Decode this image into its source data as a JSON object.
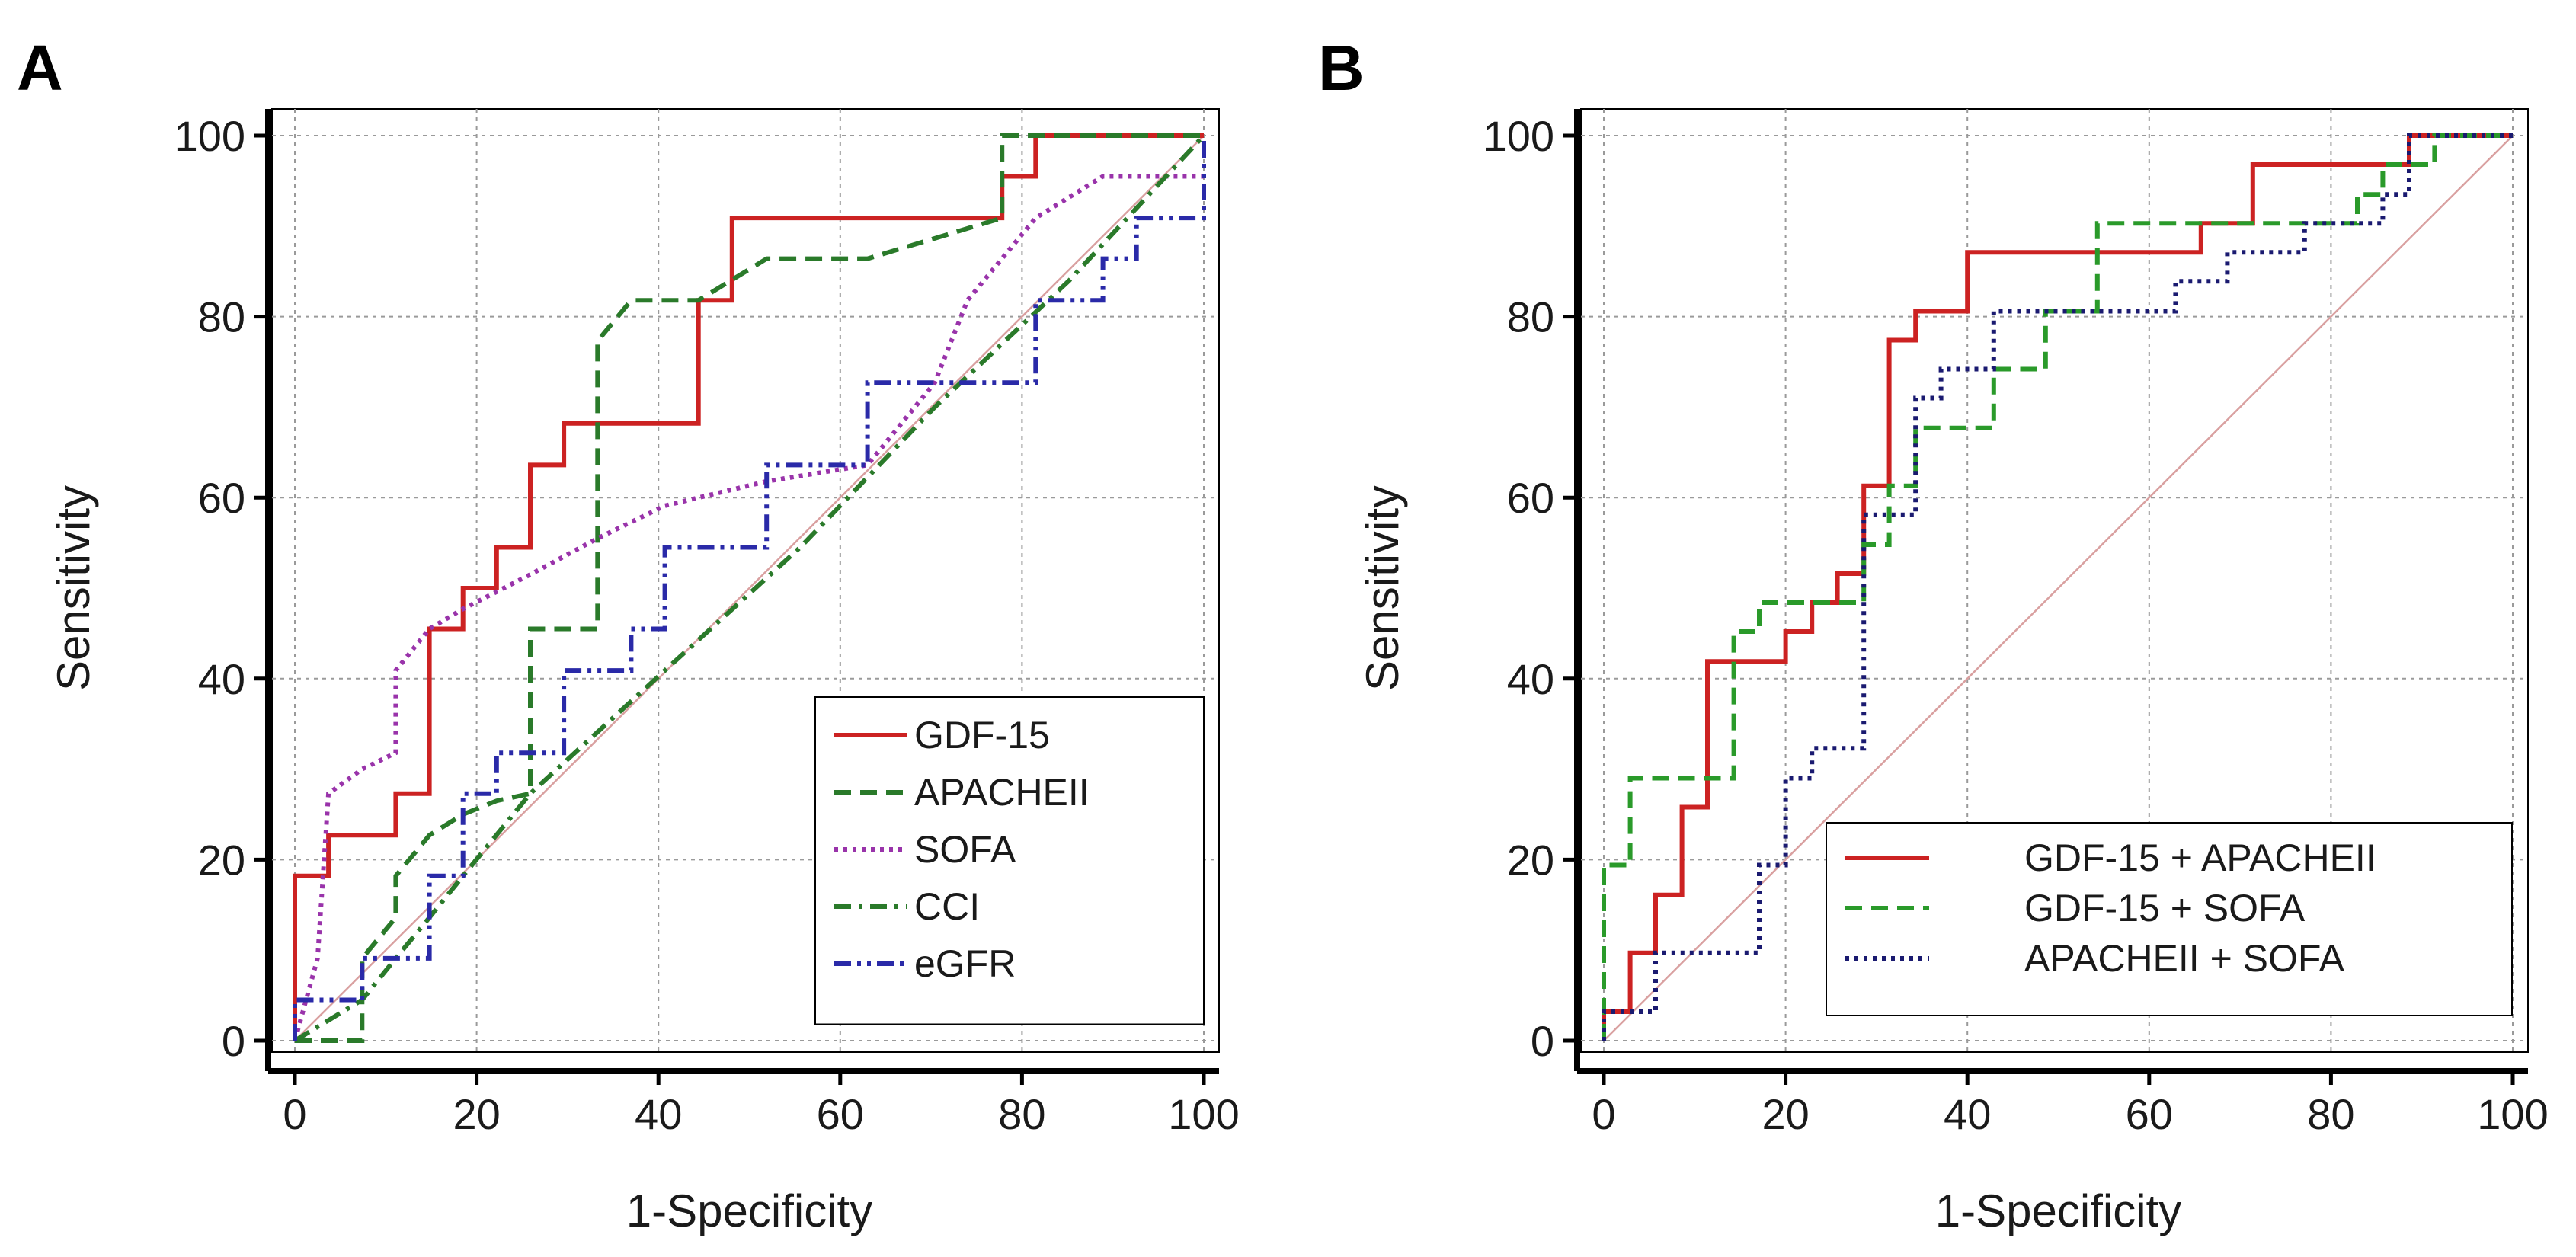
{
  "chart_data": [
    {
      "type": "line",
      "panel": "A",
      "title": "",
      "xlabel": "1-Specificity",
      "ylabel": "Sensitivity",
      "xlim": [
        0,
        100
      ],
      "ylim": [
        0,
        100
      ],
      "xticks": [
        0,
        20,
        40,
        60,
        80,
        100
      ],
      "yticks": [
        0,
        20,
        40,
        60,
        80,
        100
      ],
      "grid": true,
      "legend_position": "bottom-right",
      "reference_line": {
        "x": [
          0,
          100
        ],
        "y": [
          0,
          100
        ],
        "color": "#d9a0a0"
      },
      "series": [
        {
          "name": "GDF-15",
          "style": "solid",
          "color": "#cc2222",
          "step": true,
          "x": [
            0,
            0,
            3.7,
            3.7,
            11.1,
            11.1,
            14.8,
            14.8,
            18.5,
            18.5,
            22.2,
            22.2,
            25.9,
            25.9,
            29.6,
            29.6,
            44.4,
            44.4,
            48.1,
            48.1,
            77.8,
            77.8,
            81.5,
            81.5,
            100
          ],
          "y": [
            0,
            18.2,
            18.2,
            22.7,
            22.7,
            27.3,
            27.3,
            45.5,
            45.5,
            50,
            50,
            54.5,
            54.5,
            63.6,
            63.6,
            68.2,
            68.2,
            81.8,
            81.8,
            90.9,
            90.9,
            95.5,
            95.5,
            100,
            100
          ]
        },
        {
          "name": "APACHEII",
          "style": "dashed",
          "color": "#2a7a2a",
          "step": false,
          "x": [
            0,
            3.7,
            7.4,
            7.4,
            11.1,
            11.1,
            14.8,
            18.5,
            22.2,
            25.9,
            25.9,
            29.6,
            33.3,
            33.3,
            37,
            44.4,
            51.9,
            63,
            77.8,
            77.8,
            100
          ],
          "y": [
            0,
            0,
            0,
            9.1,
            13.6,
            18.2,
            22.7,
            25,
            26.5,
            27.3,
            45.5,
            45.5,
            45.5,
            77.3,
            81.8,
            81.8,
            86.4,
            86.4,
            90.9,
            100,
            100
          ]
        },
        {
          "name": "SOFA",
          "style": "dotted",
          "color": "#9933aa",
          "step": false,
          "x": [
            0,
            2.5,
            3.7,
            7.4,
            11.1,
            11.1,
            14.8,
            18.5,
            25.9,
            33.3,
            40.7,
            51.9,
            63,
            70.4,
            74,
            81.5,
            88.9,
            100
          ],
          "y": [
            0,
            9.1,
            27.3,
            30,
            31.8,
            40.9,
            45.5,
            47.7,
            51.5,
            55.5,
            59.1,
            61.8,
            63.6,
            72.7,
            81.8,
            90.9,
            95.5,
            95.5
          ]
        },
        {
          "name": "CCI",
          "style": "dashdot",
          "color": "#2a7a2a",
          "step": false,
          "x": [
            0,
            7.4,
            11.1,
            14.8,
            18.5,
            25.9,
            40.7,
            55.6,
            70.4,
            85.2,
            100
          ],
          "y": [
            0,
            4.5,
            9.1,
            13.6,
            18.2,
            27.3,
            40.9,
            54.5,
            70,
            84,
            100
          ]
        },
        {
          "name": "eGFR",
          "style": "dashdotdot",
          "color": "#2a2aa8",
          "step": true,
          "x": [
            0,
            0,
            7.4,
            7.4,
            14.8,
            14.8,
            18.5,
            18.5,
            22.2,
            22.2,
            29.6,
            29.6,
            37,
            37,
            40.7,
            40.7,
            51.9,
            51.9,
            63,
            63,
            81.5,
            81.5,
            88.9,
            88.9,
            92.6,
            92.6,
            100,
            100
          ],
          "y": [
            0,
            4.5,
            4.5,
            9.1,
            9.1,
            18.2,
            18.2,
            27.3,
            27.3,
            31.8,
            31.8,
            40.9,
            40.9,
            45.5,
            45.5,
            54.5,
            54.5,
            63.6,
            63.6,
            72.7,
            72.7,
            81.8,
            81.8,
            86.4,
            86.4,
            90.9,
            90.9,
            100
          ]
        }
      ]
    },
    {
      "type": "line",
      "panel": "B",
      "title": "",
      "xlabel": "1-Specificity",
      "ylabel": "Sensitivity",
      "xlim": [
        0,
        100
      ],
      "ylim": [
        0,
        100
      ],
      "xticks": [
        0,
        20,
        40,
        60,
        80,
        100
      ],
      "yticks": [
        0,
        20,
        40,
        60,
        80,
        100
      ],
      "grid": true,
      "legend_position": "bottom-right",
      "reference_line": {
        "x": [
          0,
          100
        ],
        "y": [
          0,
          100
        ],
        "color": "#d9a0a0"
      },
      "series": [
        {
          "name": "GDF-15 + APACHEII",
          "style": "solid",
          "color": "#cc2222",
          "step": true,
          "x": [
            0,
            0,
            2.9,
            2.9,
            5.7,
            5.7,
            8.6,
            8.6,
            11.4,
            11.4,
            20,
            20,
            22.9,
            22.9,
            25.7,
            25.7,
            28.6,
            28.6,
            31.4,
            31.4,
            34.3,
            34.3,
            40,
            40,
            65.7,
            65.7,
            71.4,
            71.4,
            88.6,
            88.6,
            100
          ],
          "y": [
            0,
            3.2,
            3.2,
            9.7,
            9.7,
            16.1,
            16.1,
            25.8,
            25.8,
            41.9,
            41.9,
            45.2,
            45.2,
            48.4,
            48.4,
            51.6,
            51.6,
            61.3,
            61.3,
            77.4,
            77.4,
            80.6,
            80.6,
            87.1,
            87.1,
            90.3,
            90.3,
            96.8,
            96.8,
            100,
            100
          ]
        },
        {
          "name": "GDF-15 + SOFA",
          "style": "dashed",
          "color": "#2a9a2a",
          "step": true,
          "x": [
            0,
            0,
            2.9,
            2.9,
            14.3,
            14.3,
            17.1,
            17.1,
            28.6,
            28.6,
            31.4,
            31.4,
            34.3,
            34.3,
            42.9,
            42.9,
            48.6,
            48.6,
            54.3,
            54.3,
            82.9,
            82.9,
            85.7,
            85.7,
            91.4,
            91.4,
            100
          ],
          "y": [
            0,
            19.4,
            19.4,
            29,
            29,
            45.2,
            45.2,
            48.4,
            48.4,
            54.8,
            54.8,
            61.3,
            61.3,
            67.7,
            67.7,
            74.2,
            74.2,
            80.6,
            80.6,
            90.3,
            90.3,
            93.5,
            93.5,
            96.8,
            96.8,
            100,
            100
          ]
        },
        {
          "name": "APACHEII + SOFA",
          "style": "dotted",
          "color": "#1a1a70",
          "step": true,
          "x": [
            0,
            0,
            5.7,
            5.7,
            17.1,
            17.1,
            20,
            20,
            22.9,
            22.9,
            28.6,
            28.6,
            34.3,
            34.3,
            37.1,
            37.1,
            42.9,
            42.9,
            62.9,
            62.9,
            68.6,
            68.6,
            77.1,
            77.1,
            85.7,
            85.7,
            88.6,
            88.6,
            100
          ],
          "y": [
            0,
            3.2,
            3.2,
            9.7,
            9.7,
            19.4,
            19.4,
            29,
            29,
            32.3,
            32.3,
            58.1,
            58.1,
            71,
            71,
            74.2,
            74.2,
            80.6,
            80.6,
            83.9,
            83.9,
            87.1,
            87.1,
            90.3,
            90.3,
            93.5,
            93.5,
            100,
            100
          ]
        }
      ]
    }
  ]
}
